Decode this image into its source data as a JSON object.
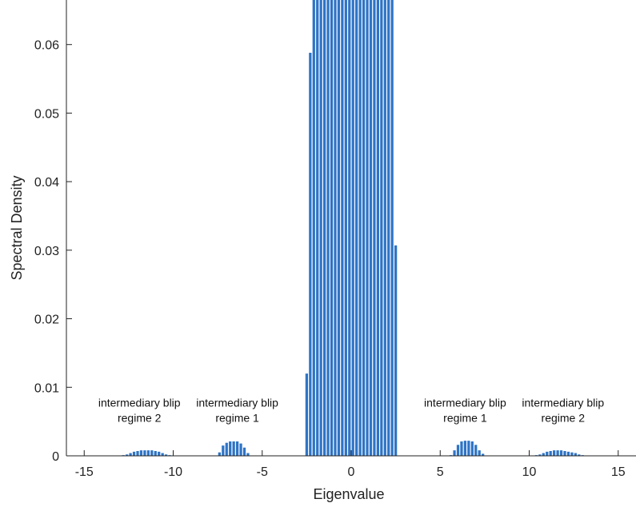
{
  "chart_data": {
    "type": "bar",
    "title": "",
    "xlabel": "Eigenvalue",
    "ylabel": "Spectral Density",
    "xlim": [
      -16,
      16
    ],
    "ylim": [
      0,
      0.0665
    ],
    "bar_color": "#2e74c6",
    "grid": false,
    "x_ticks": [
      -15,
      -10,
      -5,
      0,
      5,
      10,
      15
    ],
    "x_tick_labels": [
      "-15",
      "-10",
      "-5",
      "0",
      "5",
      "10",
      "15"
    ],
    "y_ticks": [
      0,
      0.01,
      0.02,
      0.03,
      0.04,
      0.05,
      0.06
    ],
    "y_tick_labels": [
      "0",
      "0.01",
      "0.02",
      "0.03",
      "0.04",
      "0.05",
      "0.06"
    ],
    "bin_width": 0.2,
    "x": [
      -12.8,
      -12.6,
      -12.4,
      -12.2,
      -12.0,
      -11.8,
      -11.6,
      -11.4,
      -11.2,
      -11.0,
      -10.8,
      -10.6,
      -10.4,
      -10.2,
      -7.4,
      -7.2,
      -7.0,
      -6.8,
      -6.6,
      -6.4,
      -6.2,
      -6.0,
      -5.8,
      -2.5,
      -2.3,
      -2.1,
      -1.9,
      -1.7,
      -1.5,
      -1.3,
      -1.1,
      -0.9,
      -0.7,
      -0.5,
      -0.3,
      -0.1,
      0.1,
      0.3,
      0.5,
      0.7,
      0.9,
      1.1,
      1.3,
      1.5,
      1.7,
      1.9,
      2.1,
      2.3,
      2.5,
      5.6,
      5.8,
      6.0,
      6.2,
      6.4,
      6.6,
      6.8,
      7.0,
      7.2,
      7.4,
      10.4,
      10.6,
      10.8,
      11.0,
      11.2,
      11.4,
      11.6,
      11.8,
      12.0,
      12.2,
      12.4,
      12.6,
      12.8,
      13.0
    ],
    "values": [
      0.0001,
      0.0002,
      0.0004,
      0.0006,
      0.0007,
      0.0008,
      0.0008,
      0.0008,
      0.0008,
      0.0007,
      0.0006,
      0.0004,
      0.0002,
      0.0001,
      0.0005,
      0.0015,
      0.0019,
      0.0021,
      0.0021,
      0.0021,
      0.0018,
      0.0012,
      0.0004,
      0.012,
      0.0588,
      0.07,
      0.07,
      0.07,
      0.07,
      0.07,
      0.07,
      0.07,
      0.07,
      0.07,
      0.07,
      0.07,
      0.07,
      0.07,
      0.07,
      0.07,
      0.07,
      0.07,
      0.07,
      0.07,
      0.07,
      0.07,
      0.07,
      0.07,
      0.0307,
      0.0001,
      0.0008,
      0.0016,
      0.0021,
      0.0022,
      0.0022,
      0.0021,
      0.0016,
      0.0008,
      0.0003,
      0.0001,
      0.0002,
      0.0004,
      0.0006,
      0.0007,
      0.0008,
      0.0008,
      0.0008,
      0.0007,
      0.0006,
      0.0005,
      0.0004,
      0.0002,
      0.0001
    ],
    "annotations": [
      {
        "lines": [
          "intermediary blip",
          "regime 2"
        ],
        "x": -11.9,
        "y": 0.0072
      },
      {
        "lines": [
          "intermediary blip",
          "regime 1"
        ],
        "x": -6.4,
        "y": 0.0072
      },
      {
        "lines": [
          "intermediary blip",
          "regime 1"
        ],
        "x": 6.4,
        "y": 0.0072
      },
      {
        "lines": [
          "intermediary blip",
          "regime 2"
        ],
        "x": 11.9,
        "y": 0.0072
      }
    ]
  }
}
